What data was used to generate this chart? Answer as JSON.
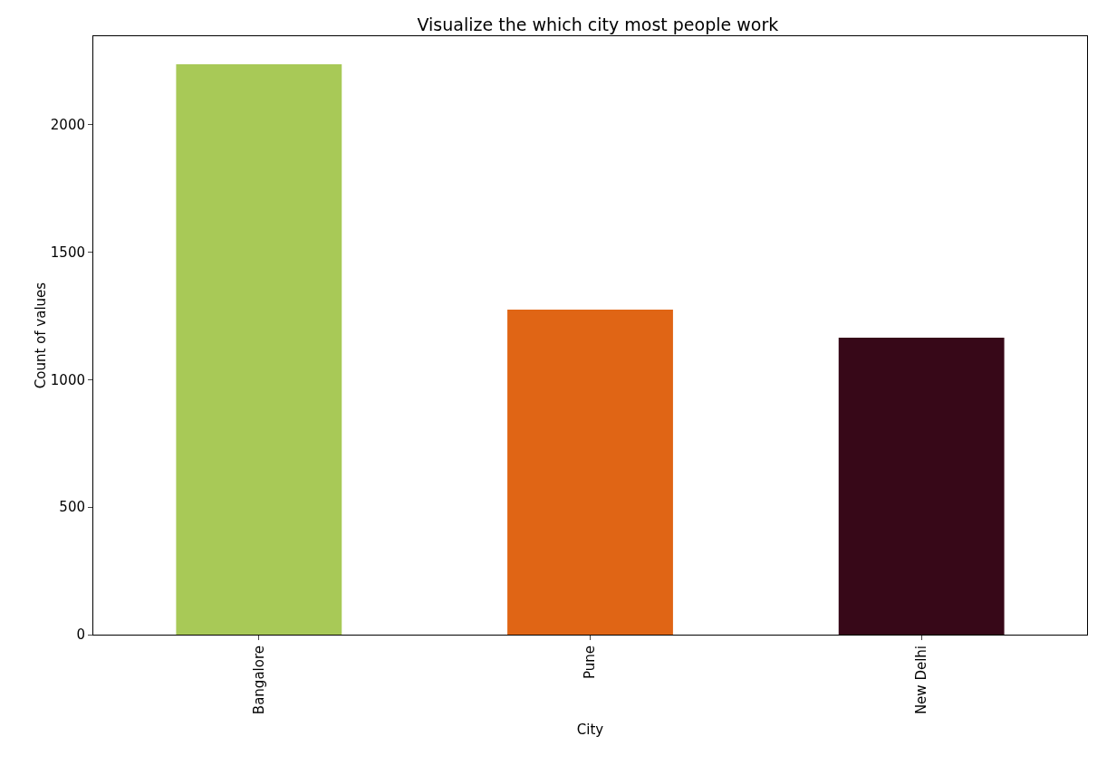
{
  "chart_data": {
    "type": "bar",
    "title": "Visualize the which city most people work",
    "xlabel": "City",
    "ylabel": "Count of values",
    "categories": [
      "Bangalore",
      "Pune",
      "New Delhi"
    ],
    "values": [
      2238,
      1275,
      1165
    ],
    "colors": [
      "#a8c957",
      "#e06515",
      "#370818"
    ],
    "ylim": [
      0,
      2348
    ],
    "yticks": [
      0,
      500,
      1000,
      1500,
      2000
    ],
    "grid": false
  }
}
